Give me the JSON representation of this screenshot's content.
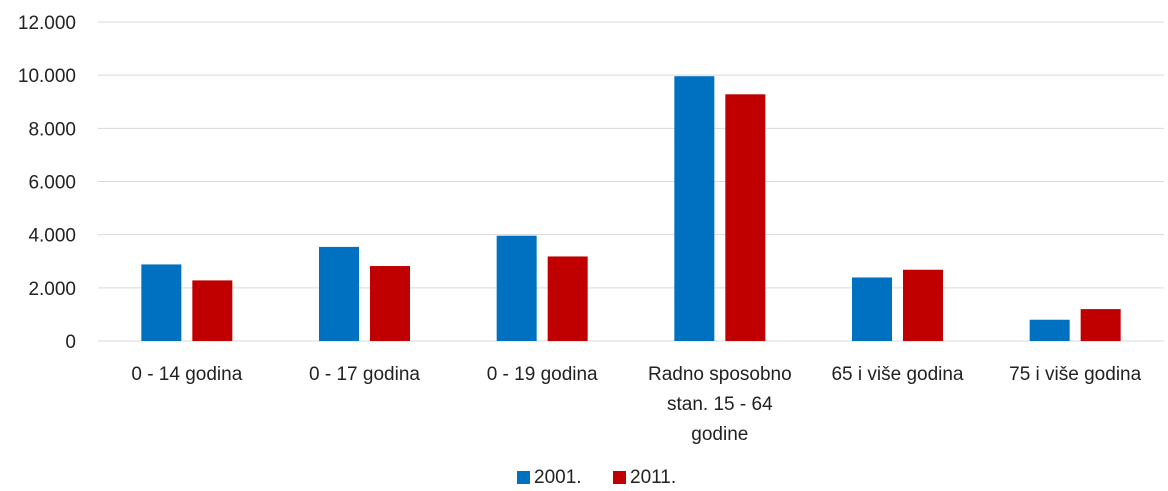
{
  "chart_data": {
    "type": "bar",
    "categories": [
      [
        "0 - 14 godina"
      ],
      [
        "0 - 17 godina"
      ],
      [
        "0 - 19 godina"
      ],
      [
        "Radno sposobno",
        "stan. 15 - 64",
        "godine"
      ],
      [
        "65 i više godina"
      ],
      [
        "75 i više godina"
      ]
    ],
    "series": [
      {
        "name": "2001.",
        "color": "#0070c0",
        "values": [
          2880,
          3540,
          3960,
          9960,
          2390,
          800
        ]
      },
      {
        "name": "2011.",
        "color": "#c00000",
        "values": [
          2280,
          2820,
          3180,
          9280,
          2680,
          1200
        ]
      }
    ],
    "y_ticks": [
      "0",
      "2.000",
      "4.000",
      "6.000",
      "8.000",
      "10.000",
      "12.000"
    ],
    "ylim": [
      0,
      12000
    ],
    "grid": true,
    "legend_position": "bottom"
  }
}
